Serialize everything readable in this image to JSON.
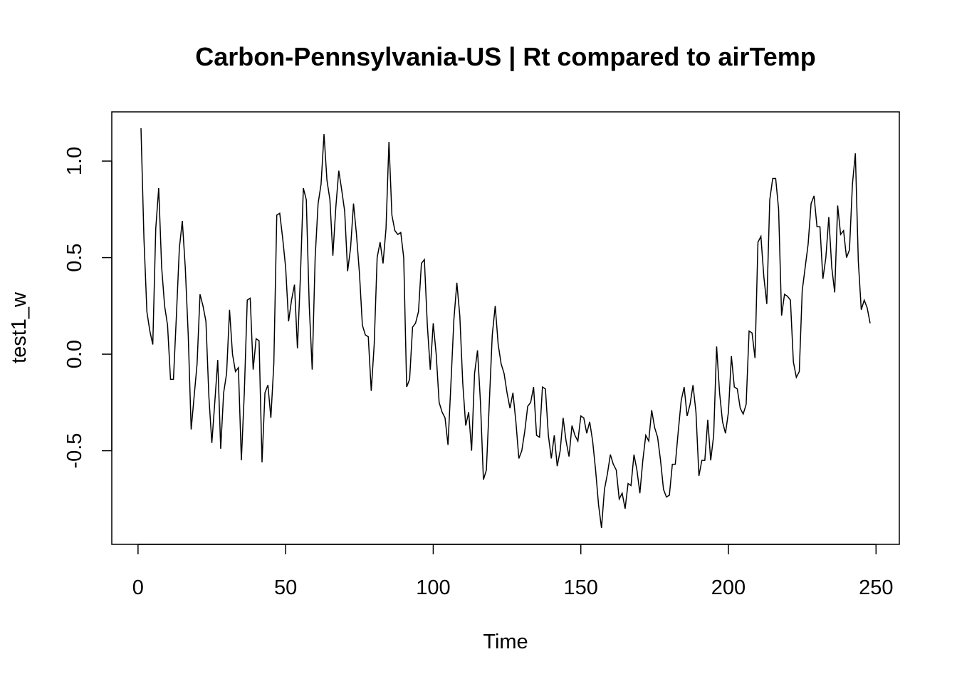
{
  "chart_data": {
    "type": "line",
    "title": "Carbon-Pennsylvania-US | Rt compared to airTemp",
    "xlabel": "Time",
    "ylabel": "test1_w",
    "xlim": [
      1,
      248
    ],
    "ylim": [
      -0.9,
      1.17
    ],
    "x_ticks": [
      0,
      50,
      100,
      150,
      200,
      250
    ],
    "y_ticks": [
      -0.5,
      0.0,
      0.5,
      1.0
    ],
    "x_tick_labels": [
      "0",
      "50",
      "100",
      "150",
      "200",
      "250"
    ],
    "y_tick_labels": [
      "-0.5",
      "0.0",
      "0.5",
      "1.0"
    ],
    "grid": false,
    "color": "#000000",
    "series": [
      {
        "x_start": 1,
        "values": [
          1.17,
          0.6,
          0.22,
          0.12,
          0.05,
          0.65,
          0.86,
          0.45,
          0.25,
          0.15,
          -0.13,
          -0.13,
          0.2,
          0.55,
          0.69,
          0.45,
          0.1,
          -0.39,
          -0.22,
          -0.05,
          0.31,
          0.25,
          0.17,
          -0.22,
          -0.46,
          -0.25,
          -0.03,
          -0.49,
          -0.2,
          -0.1,
          0.23,
          0.0,
          -0.09,
          -0.07,
          -0.55,
          -0.2,
          0.28,
          0.29,
          -0.08,
          0.08,
          0.07,
          -0.56,
          -0.2,
          -0.16,
          -0.33,
          -0.05,
          0.72,
          0.73,
          0.6,
          0.45,
          0.17,
          0.28,
          0.36,
          0.03,
          0.4,
          0.86,
          0.8,
          0.25,
          -0.08,
          0.5,
          0.78,
          0.88,
          1.14,
          0.9,
          0.8,
          0.51,
          0.76,
          0.95,
          0.85,
          0.74,
          0.43,
          0.55,
          0.78,
          0.62,
          0.42,
          0.15,
          0.1,
          0.09,
          -0.19,
          0.05,
          0.5,
          0.58,
          0.47,
          0.65,
          1.1,
          0.72,
          0.64,
          0.62,
          0.63,
          0.5,
          -0.17,
          -0.13,
          0.14,
          0.16,
          0.22,
          0.47,
          0.49,
          0.15,
          -0.08,
          0.16,
          0.0,
          -0.25,
          -0.3,
          -0.33,
          -0.47,
          -0.15,
          0.18,
          0.37,
          0.2,
          -0.15,
          -0.37,
          -0.3,
          -0.5,
          -0.1,
          0.02,
          -0.25,
          -0.65,
          -0.6,
          -0.25,
          0.1,
          0.25,
          0.05,
          -0.05,
          -0.1,
          -0.2,
          -0.28,
          -0.2,
          -0.35,
          -0.54,
          -0.5,
          -0.4,
          -0.27,
          -0.25,
          -0.17,
          -0.42,
          -0.43,
          -0.17,
          -0.18,
          -0.42,
          -0.54,
          -0.42,
          -0.58,
          -0.5,
          -0.33,
          -0.45,
          -0.53,
          -0.37,
          -0.42,
          -0.45,
          -0.32,
          -0.33,
          -0.41,
          -0.35,
          -0.45,
          -0.6,
          -0.78,
          -0.9,
          -0.7,
          -0.62,
          -0.52,
          -0.57,
          -0.6,
          -0.75,
          -0.72,
          -0.8,
          -0.67,
          -0.68,
          -0.52,
          -0.6,
          -0.72,
          -0.55,
          -0.42,
          -0.45,
          -0.29,
          -0.38,
          -0.43,
          -0.55,
          -0.7,
          -0.74,
          -0.73,
          -0.57,
          -0.57,
          -0.4,
          -0.24,
          -0.17,
          -0.32,
          -0.26,
          -0.16,
          -0.3,
          -0.63,
          -0.55,
          -0.55,
          -0.34,
          -0.55,
          -0.42,
          0.04,
          -0.2,
          -0.35,
          -0.41,
          -0.3,
          -0.01,
          -0.17,
          -0.18,
          -0.28,
          -0.31,
          -0.26,
          0.12,
          0.11,
          -0.02,
          0.58,
          0.61,
          0.4,
          0.26,
          0.8,
          0.91,
          0.91,
          0.75,
          0.2,
          0.31,
          0.3,
          0.28,
          -0.04,
          -0.12,
          -0.09,
          0.33,
          0.45,
          0.57,
          0.78,
          0.82,
          0.66,
          0.66,
          0.39,
          0.5,
          0.71,
          0.45,
          0.32,
          0.77,
          0.62,
          0.64,
          0.5,
          0.54,
          0.88,
          1.04,
          0.48,
          0.23,
          0.28,
          0.24,
          0.16
        ]
      }
    ]
  }
}
